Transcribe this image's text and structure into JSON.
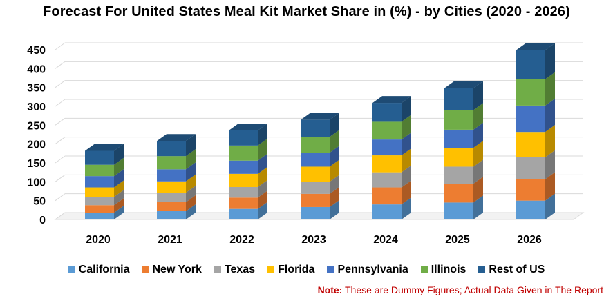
{
  "chart_data": {
    "type": "bar",
    "stacked": true,
    "style": "3d",
    "title": "Forecast For United States Meal Kit Market Share in (%) - by Cities (2020 - 2026)",
    "xlabel": "",
    "ylabel": "",
    "categories": [
      "2020",
      "2021",
      "2022",
      "2023",
      "2024",
      "2025",
      "2026"
    ],
    "ylim": [
      0,
      450
    ],
    "yticks": [
      0,
      50,
      100,
      150,
      200,
      250,
      300,
      350,
      400,
      450
    ],
    "grid": true,
    "legend_position": "bottom",
    "series": [
      {
        "name": "California",
        "color": "#5b9bd5",
        "values": [
          18,
          22,
          28,
          33,
          40,
          45,
          50
        ]
      },
      {
        "name": "New York",
        "color": "#ed7d31",
        "values": [
          20,
          24,
          30,
          35,
          45,
          50,
          57
        ]
      },
      {
        "name": "Texas",
        "color": "#a5a5a5",
        "values": [
          22,
          25,
          28,
          32,
          40,
          45,
          58
        ]
      },
      {
        "name": "Florida",
        "color": "#ffc000",
        "values": [
          25,
          30,
          35,
          40,
          45,
          50,
          67
        ]
      },
      {
        "name": "Pennsylvania",
        "color": "#4472c4",
        "values": [
          30,
          32,
          35,
          37,
          42,
          48,
          70
        ]
      },
      {
        "name": "Illinois",
        "color": "#70ad47",
        "values": [
          30,
          35,
          40,
          42,
          47,
          52,
          70
        ]
      },
      {
        "name": "Rest of US",
        "color": "#255e91",
        "values": [
          37,
          40,
          40,
          45,
          50,
          58,
          77
        ]
      }
    ]
  },
  "note": {
    "label": "Note:",
    "text": " These are Dummy Figures; Actual Data Given in The Report"
  }
}
